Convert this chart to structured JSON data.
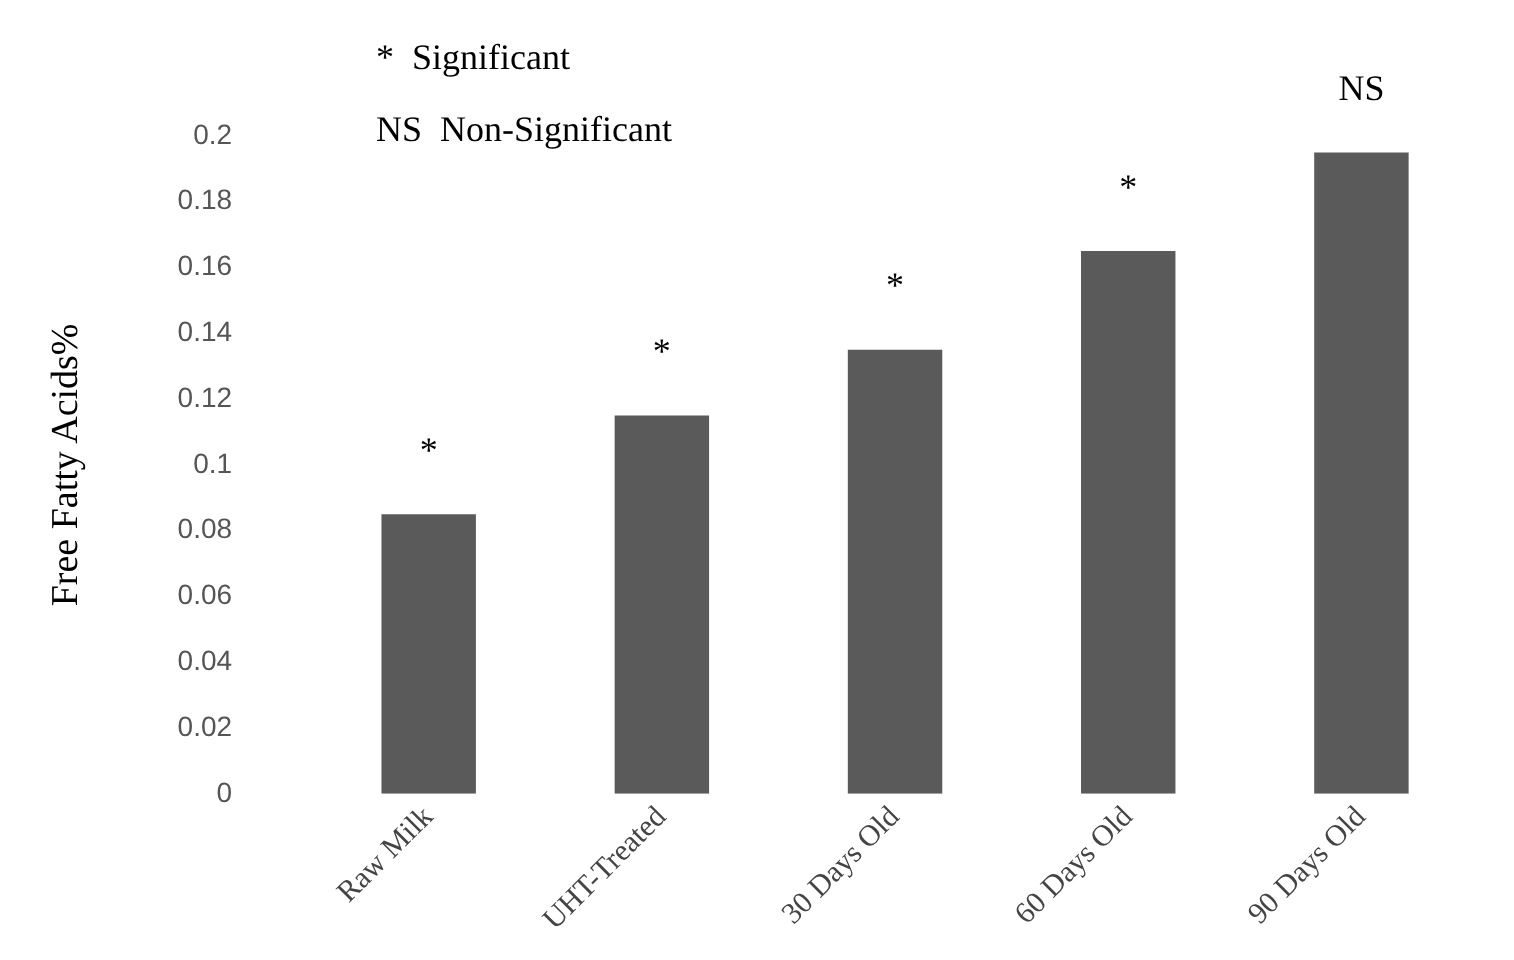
{
  "chart_data": {
    "type": "bar",
    "ylabel": "Free Fatty Acids%",
    "categories": [
      "Raw Milk",
      "UHT-Treated",
      "30 Days Old",
      "60 Days Old",
      "90 Days Old"
    ],
    "values": [
      0.085,
      0.115,
      0.135,
      0.165,
      0.195
    ],
    "color": "#5a5a5a",
    "ylim": [
      0,
      0.2
    ],
    "yticks": [
      0,
      0.02,
      0.04,
      0.06,
      0.08,
      0.1,
      0.12,
      0.14,
      0.16,
      0.18,
      0.2
    ],
    "grid": false,
    "legend": false,
    "annotations": [
      "*  Significant",
      "NS  Non-Significant",
      {
        "text": "*",
        "x": "Raw Milk",
        "y": 0.085
      },
      {
        "text": "*",
        "x": "UHT-Treated",
        "y": 0.115
      },
      {
        "text": "*",
        "x": "30 Days Old",
        "y": 0.135
      },
      {
        "text": "*",
        "x": "60 Days Old",
        "y": 0.165
      },
      {
        "text": "NS",
        "x": "90 Days Old",
        "y": 0.195
      }
    ]
  }
}
